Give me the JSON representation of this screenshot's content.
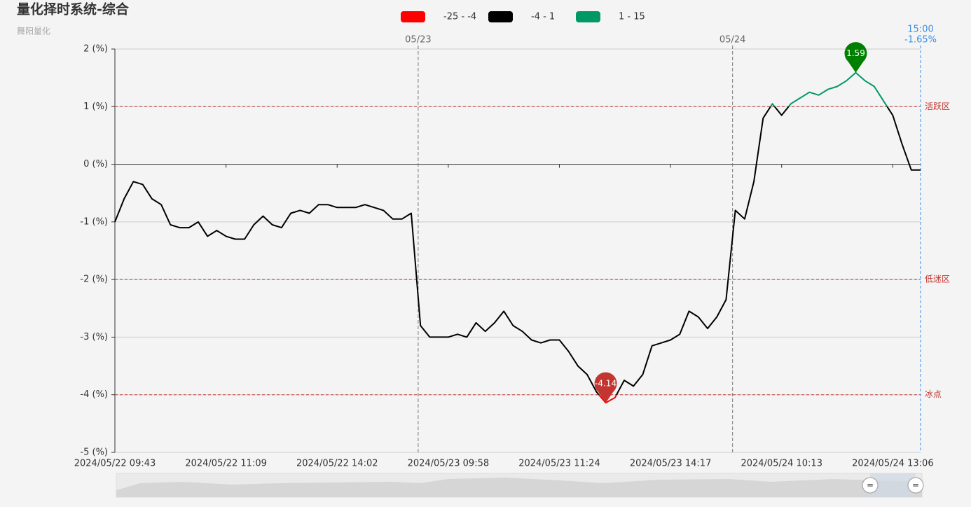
{
  "chart_data": {
    "type": "line",
    "title": "量化择时系统-综合",
    "subtitle": "舞阳量化",
    "categories": [
      "2024/05/22 09:43",
      null,
      null,
      null,
      null,
      null,
      null,
      null,
      null,
      null,
      null,
      null,
      "2024/05/22 11:09",
      null,
      null,
      null,
      null,
      null,
      null,
      null,
      null,
      null,
      null,
      null,
      "2024/05/22 14:02",
      null,
      null,
      null,
      null,
      null,
      null,
      null,
      null,
      null,
      null,
      null,
      "2024/05/23 09:58",
      null,
      null,
      null,
      null,
      null,
      null,
      null,
      null,
      null,
      null,
      null,
      "2024/05/23 11:24",
      null,
      null,
      null,
      null,
      null,
      null,
      null,
      null,
      null,
      null,
      null,
      "2024/05/23 14:17",
      null,
      null,
      null,
      null,
      null,
      null,
      null,
      null,
      null,
      null,
      null,
      "2024/05/24 10:13",
      null,
      null,
      null,
      null,
      null,
      null,
      null,
      null,
      null,
      null,
      null,
      "2024/05/24 13:06",
      null,
      null,
      null
    ],
    "series": [
      {
        "values": [
          -1.0,
          -0.6,
          -0.3,
          -0.35,
          -0.6,
          -0.7,
          -1.05,
          -1.1,
          -1.1,
          -1.0,
          -1.25,
          -1.15,
          -1.25,
          -1.3,
          -1.3,
          -1.05,
          -0.9,
          -1.05,
          -1.1,
          -0.85,
          -0.8,
          -0.85,
          -0.7,
          -0.7,
          -0.75,
          -0.75,
          -0.75,
          -0.7,
          -0.75,
          -0.8,
          -0.95,
          -0.95,
          -0.85,
          -2.8,
          -3.0,
          -3.0,
          -3.0,
          -2.95,
          -3.0,
          -2.75,
          -2.9,
          -2.75,
          -2.55,
          -2.8,
          -2.9,
          -3.05,
          -3.1,
          -3.05,
          -3.05,
          -3.25,
          -3.5,
          -3.65,
          -3.95,
          -4.14,
          -4.05,
          -3.75,
          -3.85,
          -3.65,
          -3.15,
          -3.1,
          -3.05,
          -2.95,
          -2.55,
          -2.65,
          -2.85,
          -2.65,
          -2.35,
          -0.8,
          -0.95,
          -0.3,
          0.8,
          1.05,
          0.85,
          1.05,
          1.15,
          1.25,
          1.2,
          1.3,
          1.35,
          1.45,
          1.59,
          1.45,
          1.35,
          1.1,
          0.85,
          0.35,
          -0.1,
          -0.1
        ]
      }
    ],
    "pieces": [
      {
        "min": -25,
        "max": -4,
        "label": "-25 - -4",
        "color": "#ff0000"
      },
      {
        "min": -4,
        "max": 1,
        "label": "-4 - 1",
        "color": "#000000"
      },
      {
        "min": 1,
        "max": 15,
        "label": "1 - 15",
        "color": "#009966"
      }
    ],
    "ylim": [
      -5,
      2
    ],
    "yticks": [
      {
        "value": -5,
        "label": "-5 (%)"
      },
      {
        "value": -4,
        "label": "-4 (%)"
      },
      {
        "value": -3,
        "label": "-3 (%)"
      },
      {
        "value": -2,
        "label": "-2 (%)"
      },
      {
        "value": -1,
        "label": "-1 (%)"
      },
      {
        "value": 0,
        "label": "0 (%)"
      },
      {
        "value": 1,
        "label": "1 (%)"
      },
      {
        "value": 2,
        "label": "2 (%)"
      }
    ],
    "grid": true,
    "mark_lines": [
      {
        "value": 1,
        "label": "活跃区"
      },
      {
        "value": -2,
        "label": "低迷区"
      },
      {
        "value": -4,
        "label": "冰点"
      }
    ],
    "day_lines": [
      {
        "x": 32.75,
        "label": "05/23"
      },
      {
        "x": 66.7,
        "label": "05/24"
      }
    ],
    "mark_points": [
      {
        "index": 80,
        "label": "1.59",
        "color": "#008000"
      },
      {
        "index": 53,
        "label": "-4.14",
        "color": "#c23531"
      }
    ],
    "cursor": {
      "index": 87,
      "time": "15:00",
      "label": "-1.65%"
    }
  }
}
